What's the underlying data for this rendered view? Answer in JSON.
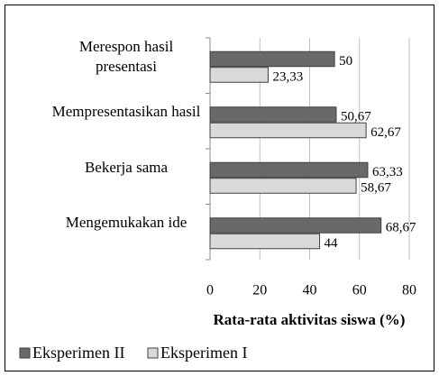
{
  "chart_data": {
    "type": "hbar",
    "xlabel": "Rata-rata aktivitas siswa  (%)",
    "categories": [
      "Merespon hasil presentasi",
      "Mempresentasikan hasil",
      "Bekerja sama",
      "Mengemukakan ide"
    ],
    "series": [
      {
        "name": "Eksperimen II",
        "color": "#696969",
        "values": [
          50,
          50.67,
          63.33,
          68.67
        ],
        "value_labels": [
          "50",
          "50,67",
          "63,33",
          "68,67"
        ]
      },
      {
        "name": "Eksperimen I",
        "color": "#d9d9d9",
        "values": [
          23.33,
          62.67,
          58.67,
          44
        ],
        "value_labels": [
          "23,33",
          "62,67",
          "58,67",
          "44"
        ]
      }
    ],
    "xlim": [
      0,
      80
    ],
    "xticks": [
      0,
      20,
      40,
      60,
      80
    ],
    "grid": true,
    "legend": "bottom"
  }
}
